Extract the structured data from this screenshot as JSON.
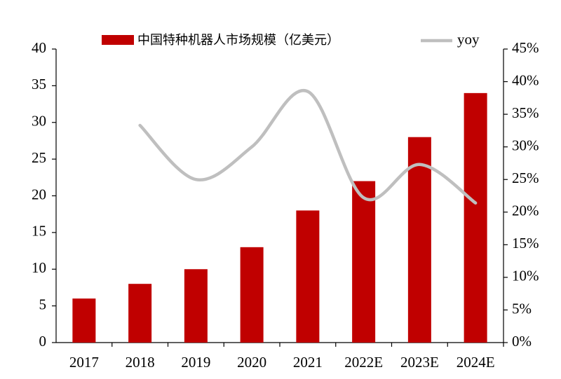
{
  "chart_data": {
    "type": "bar",
    "categories": [
      "2017",
      "2018",
      "2019",
      "2020",
      "2021",
      "2022E",
      "2023E",
      "2024E"
    ],
    "series": [
      {
        "name": "中国特种机器人市场规模（亿美元）",
        "color": "#c00000",
        "values": [
          6,
          8,
          10,
          13,
          18,
          22,
          28,
          34
        ]
      },
      {
        "name": "yoy",
        "color": "#bfbfbf",
        "type": "line",
        "axis": "y2",
        "values": [
          null,
          33.3,
          25,
          30,
          38.5,
          22.2,
          27.3,
          21.4
        ]
      }
    ],
    "ylim": [
      0,
      40
    ],
    "yticks": [
      0,
      5,
      10,
      15,
      20,
      25,
      30,
      35,
      40
    ],
    "y2lim": [
      0,
      45
    ],
    "y2ticks": [
      {
        "value": 0,
        "label": "0%"
      },
      {
        "value": 5,
        "label": "5%"
      },
      {
        "value": 10,
        "label": "10%"
      },
      {
        "value": 15,
        "label": "15%"
      },
      {
        "value": 20,
        "label": "20%"
      },
      {
        "value": 25,
        "label": "25%"
      },
      {
        "value": 30,
        "label": "30%"
      },
      {
        "value": 35,
        "label": "35%"
      },
      {
        "value": 40,
        "label": "40%"
      },
      {
        "value": 45,
        "label": "45%"
      }
    ],
    "grid": false,
    "legend": "top"
  }
}
